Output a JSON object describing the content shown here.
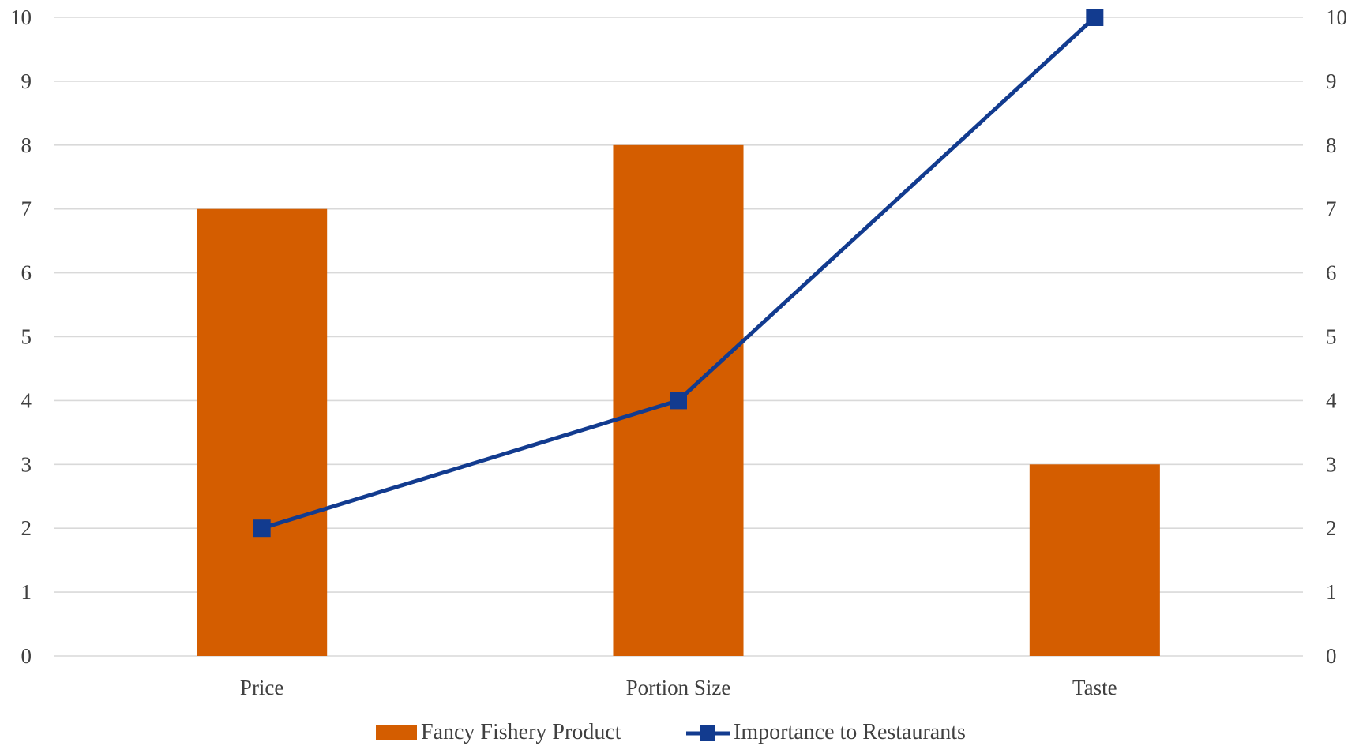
{
  "chart_data": {
    "type": "bar",
    "title": "",
    "categories": [
      "Price",
      "Portion Size",
      "Taste"
    ],
    "series": [
      {
        "name": "Fancy Fishery Product",
        "type": "bar",
        "axis": "left",
        "values": [
          7,
          8,
          3
        ],
        "color": "#D45D00"
      },
      {
        "name": "Importance to Restaurants",
        "type": "line",
        "axis": "right",
        "marker": "square",
        "values": [
          2,
          4,
          10
        ],
        "color": "#123B8F"
      }
    ],
    "y_left": {
      "min": 0,
      "max": 10,
      "ticks": [
        "0",
        "1",
        "2",
        "3",
        "4",
        "5",
        "6",
        "7",
        "8",
        "9",
        "10"
      ]
    },
    "y_right": {
      "min": 0,
      "max": 10,
      "ticks": [
        "0",
        "1",
        "2",
        "3",
        "4",
        "5",
        "6",
        "7",
        "8",
        "9",
        "10"
      ]
    },
    "grid": true,
    "grid_color": "#D9D9D9",
    "legend": {
      "position": "bottom",
      "entries": [
        "Fancy Fishery Product",
        "Importance to Restaurants"
      ]
    }
  }
}
